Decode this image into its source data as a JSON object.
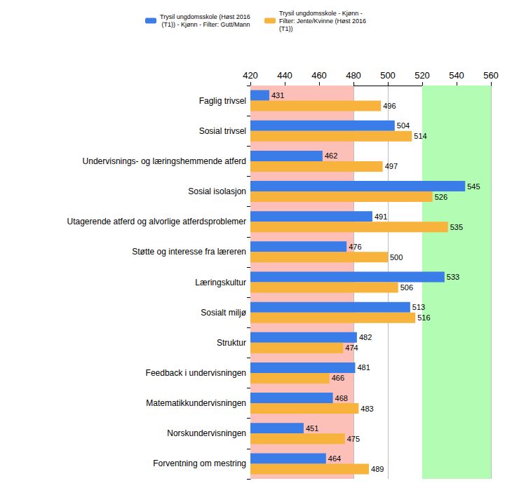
{
  "chart_data": {
    "type": "bar",
    "orientation": "horizontal",
    "categories": [
      "Faglig trivsel",
      "Sosial trivsel",
      "Undervisnings- og læringshemmende atferd",
      "Sosial isolasjon",
      "Utagerende atferd og alvorlige atferdsproblemer",
      "Støtte og interesse fra læreren",
      "Læringskultur",
      "Sosialt miljø",
      "Struktur",
      "Feedback i undervisningen",
      "Matematikkundervisningen",
      "Norskundervisningen",
      "Forventning om mestring"
    ],
    "series": [
      {
        "name": "Trysil ungdomsskole (Høst 2016 (T1)) - Kjønn - Filter: Gutt/Mann",
        "color": "#3a7de8",
        "values": [
          431,
          504,
          462,
          545,
          491,
          476,
          533,
          513,
          482,
          481,
          468,
          451,
          464
        ]
      },
      {
        "name": "Trysil ungdomsskole - Kjønn - Filter: Jente/Kvinne (Høst 2016 (T1))",
        "color": "#f8b33c",
        "values": [
          496,
          514,
          497,
          526,
          535,
          500,
          506,
          516,
          474,
          466,
          483,
          475,
          489
        ]
      }
    ],
    "bands": [
      {
        "from": 420,
        "to": 480,
        "color": "#fdc0b8"
      },
      {
        "from": 520,
        "to": 560,
        "color": "#b3fcb3"
      }
    ],
    "xlim": [
      420,
      560
    ],
    "xticks": [
      420,
      440,
      460,
      480,
      500,
      520,
      540,
      560
    ],
    "grid": true,
    "legend": "top",
    "data_labels": true
  }
}
